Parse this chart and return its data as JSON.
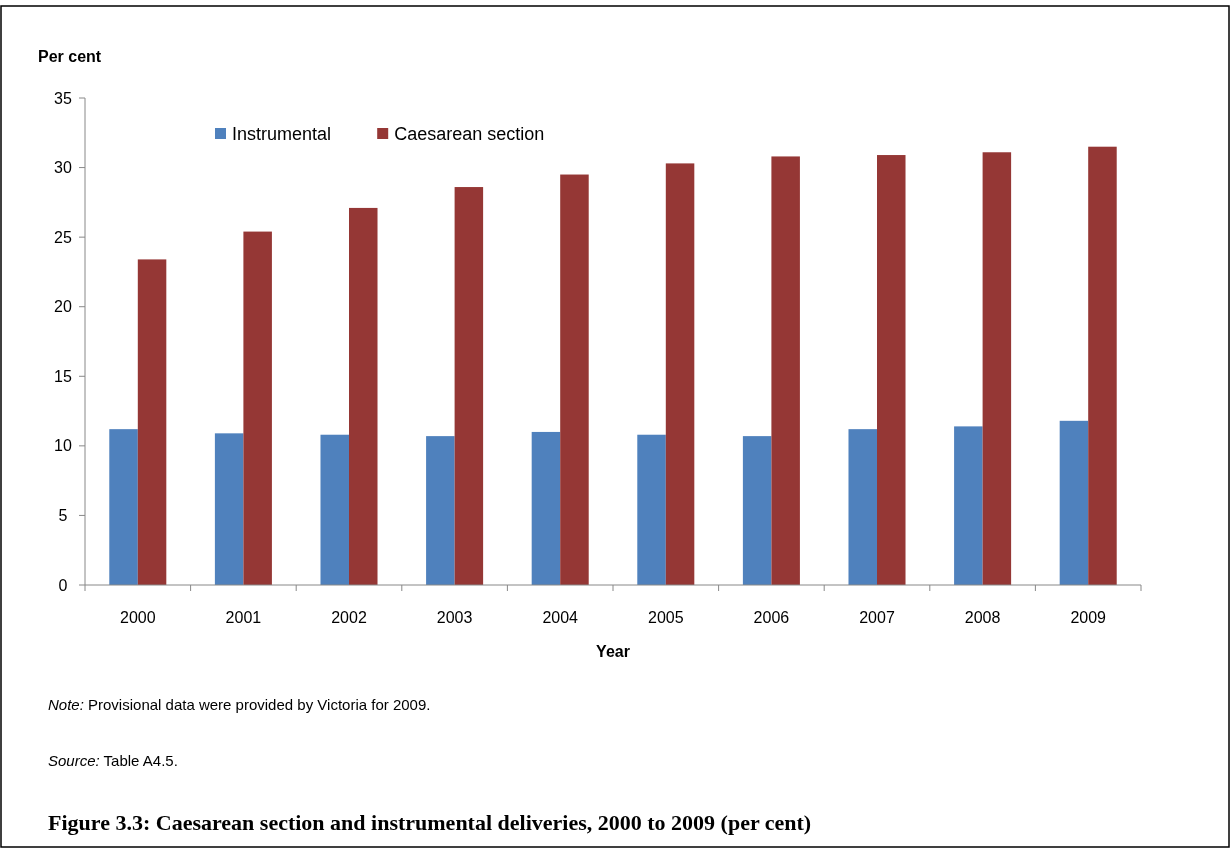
{
  "chart_data": {
    "type": "bar",
    "title": "Figure 3.3: Caesarean section and instrumental deliveries, 2000 to 2009 (per cent)",
    "xlabel": "Year",
    "ylabel": "Per cent",
    "categories": [
      "2000",
      "2001",
      "2002",
      "2003",
      "2004",
      "2005",
      "2006",
      "2007",
      "2008",
      "2009"
    ],
    "series": [
      {
        "name": "Instrumental",
        "color": "#4f81bd",
        "values": [
          11.2,
          10.9,
          10.8,
          10.7,
          11.0,
          10.8,
          10.7,
          11.2,
          11.4,
          11.8
        ]
      },
      {
        "name": "Caesarean section",
        "color": "#953735",
        "values": [
          23.4,
          25.4,
          27.1,
          28.6,
          29.5,
          30.3,
          30.8,
          30.9,
          31.1,
          31.5
        ]
      }
    ],
    "ylim": [
      0,
      35
    ],
    "yticks": [
      0,
      5,
      10,
      15,
      20,
      25,
      30,
      35
    ],
    "grid": false,
    "legend": "top left",
    "annotations": [
      "Note: Provisional data were provided by Victoria for 2009.",
      "Source: Table A4.5."
    ]
  }
}
